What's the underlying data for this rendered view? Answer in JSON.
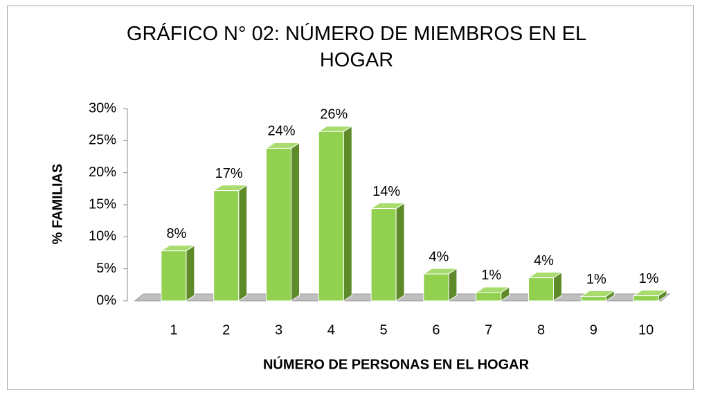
{
  "chart_data": {
    "type": "bar3d",
    "title": "GRÁFICO N° 02: NÚMERO DE MIEMBROS EN EL HOGAR",
    "y_label": "% FAMILIAS",
    "x_label": "NÚMERO DE PERSONAS EN EL HOGAR",
    "categories": [
      "1",
      "2",
      "3",
      "4",
      "5",
      "6",
      "7",
      "8",
      "9",
      "10"
    ],
    "values": [
      7.8,
      17.2,
      23.8,
      26.4,
      14.4,
      4.2,
      1.3,
      3.6,
      0.7,
      0.8
    ],
    "value_labels": [
      "8%",
      "17%",
      "24%",
      "26%",
      "14%",
      "4%",
      "1%",
      "4%",
      "1%",
      "1%"
    ],
    "color": "#92d050",
    "ylim": [
      0,
      30
    ],
    "yticks": [
      {
        "value": 0,
        "label": "0%"
      },
      {
        "value": 5,
        "label": "5%"
      },
      {
        "value": 10,
        "label": "10%"
      },
      {
        "value": 15,
        "label": "15%"
      },
      {
        "value": 20,
        "label": "20%"
      },
      {
        "value": 25,
        "label": "25%"
      },
      {
        "value": 30,
        "label": "30%"
      }
    ]
  }
}
